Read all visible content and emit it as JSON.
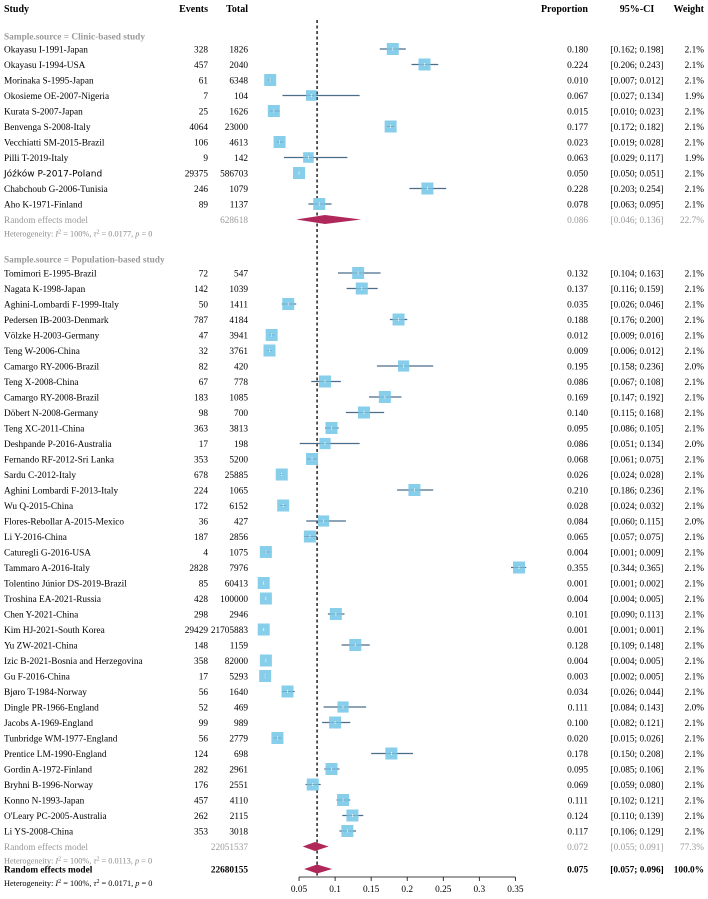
{
  "chart_data": {
    "type": "forest",
    "headers": {
      "study": "Study",
      "events": "Events",
      "total": "Total",
      "proportion": "Proportion",
      "ci": "95%-CI",
      "weight": "Weight"
    },
    "xlim": [
      0.0,
      0.38
    ],
    "ticks": [
      "0.05",
      "0.1",
      "0.15",
      "0.2",
      "0.25",
      "0.3",
      "0.35"
    ],
    "overall_line": 0.075,
    "groups": [
      {
        "label": "Sample.source = Clinic-based study",
        "studies": [
          {
            "study": "Okayasu I-1991-Japan",
            "events": "328",
            "total": "1826",
            "prop": "0.180",
            "ci": "[0.162; 0.198]",
            "weight": "2.1%",
            "p": 0.18,
            "lo": 0.162,
            "hi": 0.198
          },
          {
            "study": "Okayasu I-1994-USA",
            "events": "457",
            "total": "2040",
            "prop": "0.224",
            "ci": "[0.206; 0.243]",
            "weight": "2.1%",
            "p": 0.224,
            "lo": 0.206,
            "hi": 0.243
          },
          {
            "study": "Morinaka S-1995-Japan",
            "events": "61",
            "total": "6348",
            "prop": "0.010",
            "ci": "[0.007; 0.012]",
            "weight": "2.1%",
            "p": 0.01,
            "lo": 0.007,
            "hi": 0.012
          },
          {
            "study": "Okosieme OE-2007-Nigeria",
            "events": "7",
            "total": "104",
            "prop": "0.067",
            "ci": "[0.027; 0.134]",
            "weight": "1.9%",
            "p": 0.067,
            "lo": 0.027,
            "hi": 0.134
          },
          {
            "study": "Kurata S-2007-Japan",
            "events": "25",
            "total": "1626",
            "prop": "0.015",
            "ci": "[0.010; 0.023]",
            "weight": "2.1%",
            "p": 0.015,
            "lo": 0.01,
            "hi": 0.023
          },
          {
            "study": "Benvenga S-2008-Italy",
            "events": "4064",
            "total": "23000",
            "prop": "0.177",
            "ci": "[0.172; 0.182]",
            "weight": "2.1%",
            "p": 0.177,
            "lo": 0.172,
            "hi": 0.182
          },
          {
            "study": "Vecchiatti SM-2015-Brazil",
            "events": "106",
            "total": "4613",
            "prop": "0.023",
            "ci": "[0.019; 0.028]",
            "weight": "2.1%",
            "p": 0.023,
            "lo": 0.019,
            "hi": 0.028
          },
          {
            "study": "Pilli T-2019-Italy",
            "events": "9",
            "total": "142",
            "prop": "0.063",
            "ci": "[0.029; 0.117]",
            "weight": "1.9%",
            "p": 0.063,
            "lo": 0.029,
            "hi": 0.117
          },
          {
            "study": "Jóźków P-2017-Poland",
            "events": "29375",
            "total": "586703",
            "prop": "0.050",
            "ci": "[0.050; 0.051]",
            "weight": "2.1%",
            "p": 0.05,
            "lo": 0.05,
            "hi": 0.051,
            "sans": true
          },
          {
            "study": "Chabchoub G-2006-Tunisia",
            "events": "246",
            "total": "1079",
            "prop": "0.228",
            "ci": "[0.203; 0.254]",
            "weight": "2.1%",
            "p": 0.228,
            "lo": 0.203,
            "hi": 0.254
          },
          {
            "study": "Aho K-1971-Finland",
            "events": "89",
            "total": "1137",
            "prop": "0.078",
            "ci": "[0.063; 0.095]",
            "weight": "2.1%",
            "p": 0.078,
            "lo": 0.063,
            "hi": 0.095
          }
        ],
        "pooled": {
          "label": "Random effects model",
          "total": "628618",
          "prop": "0.086",
          "ci": "[0.046; 0.136]",
          "weight": "22.7%",
          "p": 0.086,
          "lo": 0.046,
          "hi": 0.136
        },
        "heterogeneity": "Heterogeneity: I² = 100%, τ² = 0.0177, p = 0"
      },
      {
        "label": "Sample.source = Population-based study",
        "studies": [
          {
            "study": "Tomimori E-1995-Brazil",
            "events": "72",
            "total": "547",
            "prop": "0.132",
            "ci": "[0.104; 0.163]",
            "weight": "2.1%",
            "p": 0.132,
            "lo": 0.104,
            "hi": 0.163
          },
          {
            "study": "Nagata K-1998-Japan",
            "events": "142",
            "total": "1039",
            "prop": "0.137",
            "ci": "[0.116; 0.159]",
            "weight": "2.1%",
            "p": 0.137,
            "lo": 0.116,
            "hi": 0.159
          },
          {
            "study": "Aghini-Lombardi F-1999-Italy",
            "events": "50",
            "total": "1411",
            "prop": "0.035",
            "ci": "[0.026; 0.046]",
            "weight": "2.1%",
            "p": 0.035,
            "lo": 0.026,
            "hi": 0.046
          },
          {
            "study": "Pedersen IB-2003-Denmark",
            "events": "787",
            "total": "4184",
            "prop": "0.188",
            "ci": "[0.176; 0.200]",
            "weight": "2.1%",
            "p": 0.188,
            "lo": 0.176,
            "hi": 0.2
          },
          {
            "study": "Völzke H-2003-Germany",
            "events": "47",
            "total": "3941",
            "prop": "0.012",
            "ci": "[0.009; 0.016]",
            "weight": "2.1%",
            "p": 0.012,
            "lo": 0.009,
            "hi": 0.016
          },
          {
            "study": "Teng W-2006-China",
            "events": "32",
            "total": "3761",
            "prop": "0.009",
            "ci": "[0.006; 0.012]",
            "weight": "2.1%",
            "p": 0.009,
            "lo": 0.006,
            "hi": 0.012
          },
          {
            "study": "Camargo RY-2006-Brazil",
            "events": "82",
            "total": "420",
            "prop": "0.195",
            "ci": "[0.158; 0.236]",
            "weight": "2.0%",
            "p": 0.195,
            "lo": 0.158,
            "hi": 0.236
          },
          {
            "study": "Teng X-2008-China",
            "events": "67",
            "total": "778",
            "prop": "0.086",
            "ci": "[0.067; 0.108]",
            "weight": "2.1%",
            "p": 0.086,
            "lo": 0.067,
            "hi": 0.108
          },
          {
            "study": "Camargo RY-2008-Brazil",
            "events": "183",
            "total": "1085",
            "prop": "0.169",
            "ci": "[0.147; 0.192]",
            "weight": "2.1%",
            "p": 0.169,
            "lo": 0.147,
            "hi": 0.192
          },
          {
            "study": "Döbert N-2008-Germany",
            "events": "98",
            "total": "700",
            "prop": "0.140",
            "ci": "[0.115; 0.168]",
            "weight": "2.1%",
            "p": 0.14,
            "lo": 0.115,
            "hi": 0.168
          },
          {
            "study": "Teng XC-2011-China",
            "events": "363",
            "total": "3813",
            "prop": "0.095",
            "ci": "[0.086; 0.105]",
            "weight": "2.1%",
            "p": 0.095,
            "lo": 0.086,
            "hi": 0.105
          },
          {
            "study": "Deshpande P-2016-Australia",
            "events": "17",
            "total": "198",
            "prop": "0.086",
            "ci": "[0.051; 0.134]",
            "weight": "2.0%",
            "p": 0.086,
            "lo": 0.051,
            "hi": 0.134
          },
          {
            "study": "Fernando RF-2012-Sri Lanka",
            "events": "353",
            "total": "5200",
            "prop": "0.068",
            "ci": "[0.061; 0.075]",
            "weight": "2.1%",
            "p": 0.068,
            "lo": 0.061,
            "hi": 0.075
          },
          {
            "study": "Sardu C-2012-Italy",
            "events": "678",
            "total": "25885",
            "prop": "0.026",
            "ci": "[0.024; 0.028]",
            "weight": "2.1%",
            "p": 0.026,
            "lo": 0.024,
            "hi": 0.028
          },
          {
            "study": "Aghini Lombardi F-2013-Italy",
            "events": "224",
            "total": "1065",
            "prop": "0.210",
            "ci": "[0.186; 0.236]",
            "weight": "2.1%",
            "p": 0.21,
            "lo": 0.186,
            "hi": 0.236
          },
          {
            "study": "Wu Q-2015-China",
            "events": "172",
            "total": "6152",
            "prop": "0.028",
            "ci": "[0.024; 0.032]",
            "weight": "2.1%",
            "p": 0.028,
            "lo": 0.024,
            "hi": 0.032
          },
          {
            "study": "Flores-Rebollar A-2015-Mexico",
            "events": "36",
            "total": "427",
            "prop": "0.084",
            "ci": "[0.060; 0.115]",
            "weight": "2.0%",
            "p": 0.084,
            "lo": 0.06,
            "hi": 0.115
          },
          {
            "study": "Li Y-2016-China",
            "events": "187",
            "total": "2856",
            "prop": "0.065",
            "ci": "[0.057; 0.075]",
            "weight": "2.1%",
            "p": 0.065,
            "lo": 0.057,
            "hi": 0.075
          },
          {
            "study": "Caturegli G-2016-USA",
            "events": "4",
            "total": "1075",
            "prop": "0.004",
            "ci": "[0.001; 0.009]",
            "weight": "2.1%",
            "p": 0.004,
            "lo": 0.001,
            "hi": 0.009
          },
          {
            "study": "Tammaro A-2016-Italy",
            "events": "2828",
            "total": "7976",
            "prop": "0.355",
            "ci": "[0.344; 0.365]",
            "weight": "2.1%",
            "p": 0.355,
            "lo": 0.344,
            "hi": 0.365
          },
          {
            "study": "Tolentino Júnior DS-2019-Brazil",
            "events": "85",
            "total": "60413",
            "prop": "0.001",
            "ci": "[0.001; 0.002]",
            "weight": "2.1%",
            "p": 0.001,
            "lo": 0.001,
            "hi": 0.002
          },
          {
            "study": "Troshina EA-2021-Russia",
            "events": "428",
            "total": "100000",
            "prop": "0.004",
            "ci": "[0.004; 0.005]",
            "weight": "2.1%",
            "p": 0.004,
            "lo": 0.004,
            "hi": 0.005
          },
          {
            "study": "Chen Y-2021-China",
            "events": "298",
            "total": "2946",
            "prop": "0.101",
            "ci": "[0.090; 0.113]",
            "weight": "2.1%",
            "p": 0.101,
            "lo": 0.09,
            "hi": 0.113
          },
          {
            "study": "Kim HJ-2021-South Korea",
            "events": "29429",
            "total": "21705883",
            "prop": "0.001",
            "ci": "[0.001; 0.001]",
            "weight": "2.1%",
            "p": 0.001,
            "lo": 0.001,
            "hi": 0.001
          },
          {
            "study": "Yu ZW-2021-China",
            "events": "148",
            "total": "1159",
            "prop": "0.128",
            "ci": "[0.109; 0.148]",
            "weight": "2.1%",
            "p": 0.128,
            "lo": 0.109,
            "hi": 0.148
          },
          {
            "study": "Izic B-2021-Bosnia and Herzegovina",
            "events": "358",
            "total": "82000",
            "prop": "0.004",
            "ci": "[0.004; 0.005]",
            "weight": "2.1%",
            "p": 0.004,
            "lo": 0.004,
            "hi": 0.005
          },
          {
            "study": "Gu F-2016-China",
            "events": "17",
            "total": "5293",
            "prop": "0.003",
            "ci": "[0.002; 0.005]",
            "weight": "2.1%",
            "p": 0.003,
            "lo": 0.002,
            "hi": 0.005
          },
          {
            "study": "Bjøro T-1984-Norway",
            "events": "56",
            "total": "1640",
            "prop": "0.034",
            "ci": "[0.026; 0.044]",
            "weight": "2.1%",
            "p": 0.034,
            "lo": 0.026,
            "hi": 0.044
          },
          {
            "study": "Dingle PR-1966-England",
            "events": "52",
            "total": "469",
            "prop": "0.111",
            "ci": "[0.084; 0.143]",
            "weight": "2.0%",
            "p": 0.111,
            "lo": 0.084,
            "hi": 0.143
          },
          {
            "study": "Jacobs A-1969-England",
            "events": "99",
            "total": "989",
            "prop": "0.100",
            "ci": "[0.082; 0.121]",
            "weight": "2.1%",
            "p": 0.1,
            "lo": 0.082,
            "hi": 0.121
          },
          {
            "study": "Tunbridge WM-1977-England",
            "events": "56",
            "total": "2779",
            "prop": "0.020",
            "ci": "[0.015; 0.026]",
            "weight": "2.1%",
            "p": 0.02,
            "lo": 0.015,
            "hi": 0.026
          },
          {
            "study": "Prentice LM-1990-England",
            "events": "124",
            "total": "698",
            "prop": "0.178",
            "ci": "[0.150; 0.208]",
            "weight": "2.1%",
            "p": 0.178,
            "lo": 0.15,
            "hi": 0.208
          },
          {
            "study": "Gordin A-1972-Finland",
            "events": "282",
            "total": "2961",
            "prop": "0.095",
            "ci": "[0.085; 0.106]",
            "weight": "2.1%",
            "p": 0.095,
            "lo": 0.085,
            "hi": 0.106
          },
          {
            "study": "Bryhni B-1996-Norway",
            "events": "176",
            "total": "2551",
            "prop": "0.069",
            "ci": "[0.059; 0.080]",
            "weight": "2.1%",
            "p": 0.069,
            "lo": 0.059,
            "hi": 0.08
          },
          {
            "study": "Konno N-1993-Japan",
            "events": "457",
            "total": "4110",
            "prop": "0.111",
            "ci": "[0.102; 0.121]",
            "weight": "2.1%",
            "p": 0.111,
            "lo": 0.102,
            "hi": 0.121
          },
          {
            "study": "O'Leary PC-2005-Australia",
            "events": "262",
            "total": "2115",
            "prop": "0.124",
            "ci": "[0.110; 0.139]",
            "weight": "2.1%",
            "p": 0.124,
            "lo": 0.11,
            "hi": 0.139
          },
          {
            "study": "Li YS-2008-China",
            "events": "353",
            "total": "3018",
            "prop": "0.117",
            "ci": "[0.106; 0.129]",
            "weight": "2.1%",
            "p": 0.117,
            "lo": 0.106,
            "hi": 0.129
          }
        ],
        "pooled": {
          "label": "Random effects model",
          "total": "22051537",
          "prop": "0.072",
          "ci": "[0.055; 0.091]",
          "weight": "77.3%",
          "p": 0.072,
          "lo": 0.055,
          "hi": 0.091
        },
        "heterogeneity": "Heterogeneity: I² = 100%, τ² = 0.0113, p = 0"
      }
    ],
    "overall": {
      "label": "Random effects model",
      "total": "22680155",
      "prop": "0.075",
      "ci": "[0.057; 0.096]",
      "weight": "100.0%",
      "p": 0.075,
      "lo": 0.057,
      "hi": 0.096
    },
    "overall_heterogeneity": "Heterogeneity: I² = 100%, τ² = 0.0171, p = 0",
    "colors": {
      "box": "#87ceeb",
      "line": "#4a6e8a",
      "diamond": "#b0285a",
      "grey": "#9a9a9a"
    }
  }
}
